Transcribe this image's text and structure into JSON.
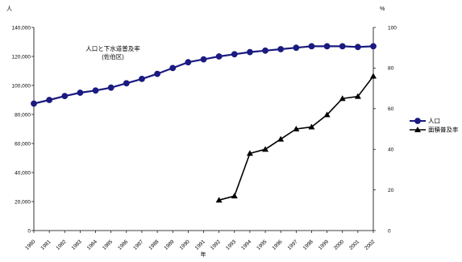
{
  "chart_data": {
    "type": "line",
    "title": "人口と下水道普及率",
    "subtitle": "(佐伯区)",
    "xlabel": "年",
    "y_left_unit": "人",
    "y_right_unit": "%",
    "x_tick_labels": [
      "1980",
      "1981",
      "1982",
      "1983",
      "1984",
      "1985",
      "1986",
      "1987",
      "1988",
      "1989",
      "1990",
      "1991",
      "1992",
      "1993",
      "1994",
      "1995",
      "1996",
      "1997",
      "1998",
      "1999",
      "2000",
      "2001",
      "2002"
    ],
    "y_left_range": [
      0,
      140000
    ],
    "y_left_ticks": [
      "0",
      "20,000",
      "40,000",
      "60,000",
      "80,000",
      "100,000",
      "120,000",
      "140,000"
    ],
    "y_right_range": [
      0,
      100
    ],
    "y_right_ticks": [
      "0",
      "20",
      "40",
      "60",
      "80",
      "100"
    ],
    "grid": false,
    "legend_position": "right",
    "series": [
      {
        "name": "人口",
        "axis": "left",
        "marker": "circle",
        "color": "#1a1a80",
        "x": [
          "1980",
          "1981",
          "1982",
          "1983",
          "1984",
          "1985",
          "1986",
          "1987",
          "1988",
          "1989",
          "1990",
          "1991",
          "1992",
          "1993",
          "1994",
          "1995",
          "1996",
          "1997",
          "1998",
          "1999",
          "2000",
          "2001",
          "2002"
        ],
        "values": [
          87500,
          90000,
          92700,
          95000,
          96500,
          98500,
          101500,
          104500,
          108000,
          112000,
          116000,
          118000,
          120000,
          121500,
          123000,
          124000,
          125000,
          126000,
          127000,
          127000,
          127000,
          126500,
          127000
        ]
      },
      {
        "name": "面積普及率",
        "axis": "right",
        "marker": "triangle",
        "color": "#000000",
        "x": [
          "1992",
          "1993",
          "1994",
          "1995",
          "1996",
          "1997",
          "1998",
          "1999",
          "2000",
          "2001",
          "2002"
        ],
        "values": [
          15,
          17,
          38,
          40,
          45,
          50,
          51,
          57,
          65,
          66,
          76
        ]
      }
    ]
  }
}
